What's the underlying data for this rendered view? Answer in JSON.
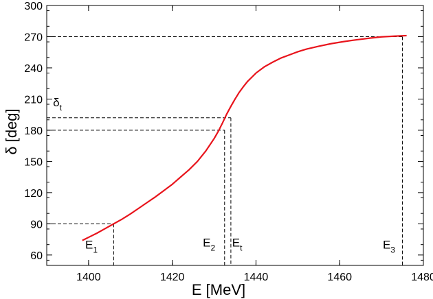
{
  "chart_data": {
    "type": "line",
    "xlabel": "E [MeV]",
    "ylabel": "δ [deg]",
    "xlim": [
      1390,
      1480
    ],
    "ylim": [
      50,
      300
    ],
    "xticks": [
      1400,
      1420,
      1440,
      1460,
      1480
    ],
    "yticks": [
      60,
      90,
      120,
      150,
      180,
      210,
      240,
      270,
      300
    ],
    "grid": false,
    "legend": "none",
    "colors": {
      "curve": "#e8141c",
      "guides": "#000000"
    },
    "series": [
      {
        "x": [
          1398.5,
          1400,
          1402,
          1404,
          1406,
          1408,
          1410,
          1412,
          1414,
          1416,
          1418,
          1420,
          1422,
          1424,
          1426,
          1428,
          1430,
          1431,
          1432,
          1433,
          1434,
          1435,
          1436,
          1437,
          1438,
          1439,
          1440,
          1442,
          1444,
          1446,
          1448,
          1450,
          1452,
          1455,
          1458,
          1461,
          1464,
          1467,
          1470,
          1473,
          1476
        ],
        "y": [
          74,
          77,
          81,
          85.5,
          90,
          94.5,
          99.5,
          105,
          110.5,
          116,
          122,
          128,
          135,
          142,
          150,
          160,
          172,
          179,
          187,
          195.5,
          203,
          210,
          216.5,
          222,
          227,
          231,
          235,
          241,
          245.5,
          249.5,
          252.5,
          255.5,
          258,
          260.8,
          263.3,
          265.3,
          267,
          268.5,
          269.8,
          270.5,
          271
        ]
      }
    ],
    "guides": [
      {
        "e": 1406,
        "delta": 90
      },
      {
        "e": 1432.5,
        "delta": 180
      },
      {
        "e": 1434,
        "delta": 192
      },
      {
        "e": 1475,
        "delta": 270
      }
    ],
    "annotations": [
      {
        "id": "e1",
        "main": "E",
        "sub": "1",
        "x": 1399.2,
        "y": 66
      },
      {
        "id": "e2",
        "main": "E",
        "sub": "2",
        "x": 1427.3,
        "y": 68
      },
      {
        "id": "et",
        "main": "E",
        "sub": "t",
        "x": 1434.3,
        "y": 68
      },
      {
        "id": "e3",
        "main": "E",
        "sub": "3",
        "x": 1470.3,
        "y": 66
      },
      {
        "id": "dt",
        "main": "δ",
        "sub": "t",
        "x": 1391.5,
        "y": 203
      }
    ]
  }
}
